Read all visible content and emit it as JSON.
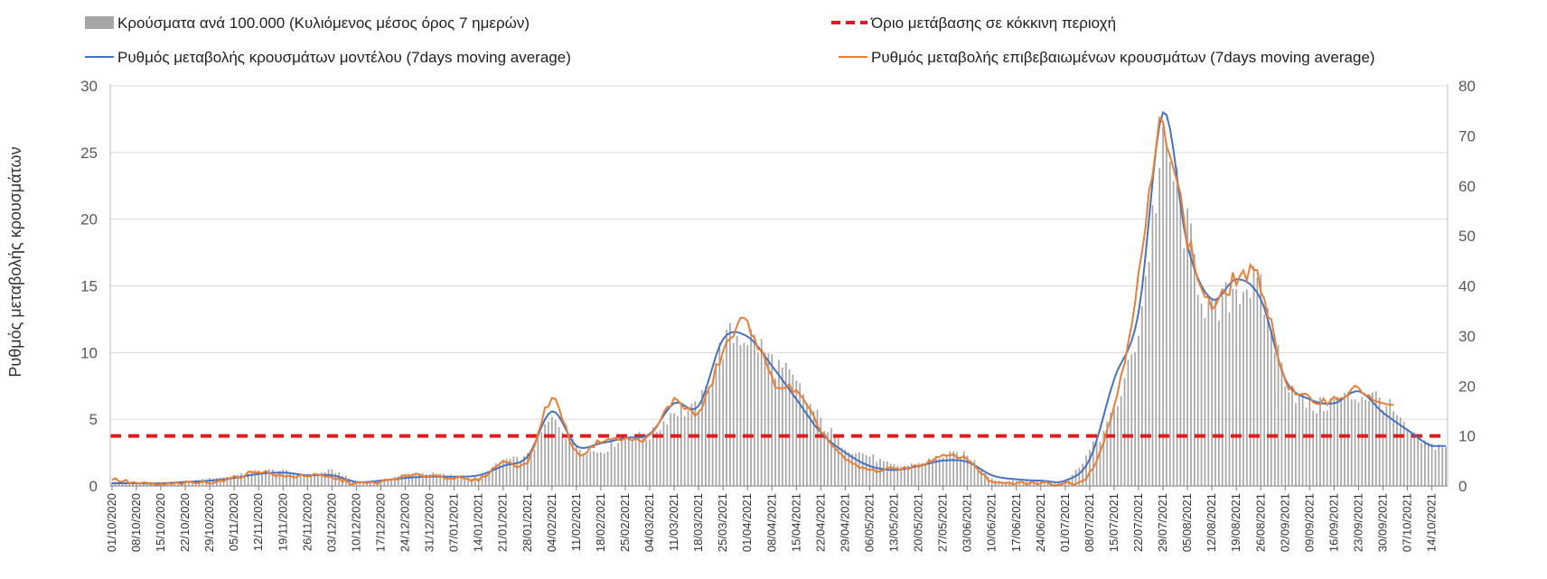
{
  "chart_data": {
    "type": "bar+line",
    "ylabel": "Ρυθμός μεταβολής κρουσμάτων",
    "ylim": [
      0,
      30
    ],
    "yticks": [
      0,
      5,
      10,
      15,
      20,
      25,
      30
    ],
    "y2lim": [
      0,
      80
    ],
    "y2ticks": [
      0,
      10,
      20,
      30,
      40,
      50,
      60,
      70,
      80
    ],
    "grid": "horizontal",
    "legend_position": "top",
    "legend": {
      "bars": "Κρούσματα ανά 100.000 (Κυλιόμενος μέσος όρος 7 ημερών)",
      "threshold": "Όριο μετάβασης σε κόκκινη περιοχή",
      "model": "Ρυθμός μεταβολής κρουσμάτων μοντέλου (7days moving average)",
      "confirmed": "Ρυθμός μεταβολής επιβεβαιωμένων κρουσμάτων (7days moving average)"
    },
    "colors": {
      "bars": "#a6a6a6",
      "threshold": "#e3191c",
      "model": "#4472c4",
      "confirmed": "#ed7d31",
      "grid": "#d9d9d9",
      "axis": "#bfbfbf"
    },
    "x_tick_labels": [
      "01/10/2020",
      "08/10/2020",
      "15/10/2020",
      "22/10/2020",
      "29/10/2020",
      "05/11/2020",
      "12/11/2020",
      "19/11/2020",
      "26/11/2020",
      "03/12/2020",
      "10/12/2020",
      "17/12/2020",
      "24/12/2020",
      "31/12/2020",
      "07/01/2021",
      "14/01/2021",
      "21/01/2021",
      "28/01/2021",
      "04/02/2021",
      "11/02/2021",
      "18/02/2021",
      "25/02/2021",
      "04/03/2021",
      "11/03/2021",
      "18/03/2021",
      "25/03/2021",
      "01/04/2021",
      "08/04/2021",
      "15/04/2021",
      "22/04/2021",
      "29/04/2021",
      "06/05/2021",
      "13/05/2021",
      "20/05/2021",
      "27/05/2021",
      "03/06/2021",
      "10/06/2021",
      "17/06/2021",
      "24/06/2021",
      "01/07/2021",
      "08/07/2021",
      "15/07/2021",
      "22/07/2021",
      "29/07/2021",
      "05/08/2021",
      "12/08/2021",
      "19/08/2021",
      "26/08/2021",
      "02/09/2021",
      "09/09/2021",
      "16/09/2021",
      "23/09/2021",
      "30/09/2021",
      "07/10/2021",
      "14/10/2021"
    ],
    "bar_series_weekly": {
      "name": "Κρούσματα ανά 100.000 (Κυλιόμενος μέσος όρος 7 ημερών)",
      "axis": "right",
      "values": [
        0.8,
        0.6,
        0.6,
        0.8,
        1.5,
        2.0,
        3.0,
        3.0,
        2.0,
        3.0,
        1.0,
        1.2,
        2.3,
        2.5,
        2.0,
        1.5,
        5.0,
        6.0,
        13.0,
        8.0,
        7.0,
        10.0,
        10.0,
        15.0,
        16.0,
        28.0,
        30.0,
        25.0,
        20.0,
        13.0,
        8.0,
        6.0,
        4.0,
        4.5,
        6.0,
        6.0,
        1.5,
        1.0,
        1.0,
        1.0,
        7.0,
        15.0,
        32.0,
        65.0,
        50.0,
        34.0,
        40.0,
        38.0,
        22.0,
        16.0,
        17.0,
        18.0,
        17.0,
        11.0,
        8.0
      ]
    },
    "model_series_weekly": {
      "name": "Ρυθμός μεταβολής κρουσμάτων μοντέλου (7days moving average)",
      "axis": "left",
      "values": [
        0.2,
        0.2,
        0.2,
        0.3,
        0.4,
        0.6,
        0.9,
        1.0,
        0.8,
        0.8,
        0.3,
        0.4,
        0.6,
        0.7,
        0.7,
        0.8,
        1.5,
        2.2,
        5.6,
        3.0,
        3.2,
        3.6,
        3.9,
        6.2,
        6.0,
        11.0,
        11.2,
        9.0,
        6.5,
        4.0,
        2.5,
        1.5,
        1.2,
        1.5,
        1.9,
        1.8,
        0.8,
        0.5,
        0.4,
        0.4,
        2.0,
        8.0,
        13.0,
        28.0,
        18.0,
        14.0,
        15.5,
        14.0,
        8.0,
        6.5,
        6.2,
        7.1,
        5.5,
        4.2,
        3.0
      ]
    },
    "confirmed_series_weekly": {
      "name": "Ρυθμός μεταβολής επιβεβαιωμένων κρουσμάτων (7days moving average)",
      "axis": "left",
      "values": [
        0.5,
        0.2,
        0.1,
        0.2,
        0.3,
        0.6,
        1.1,
        0.7,
        0.8,
        0.6,
        0.2,
        0.3,
        0.7,
        0.8,
        0.6,
        0.5,
        1.8,
        1.8,
        6.5,
        2.5,
        3.4,
        3.5,
        3.7,
        6.4,
        5.5,
        10.0,
        12.2,
        8.0,
        7.0,
        4.2,
        2.0,
        1.2,
        1.3,
        1.5,
        2.2,
        2.0,
        0.3,
        0.2,
        0.2,
        0.2,
        1.0,
        6.0,
        15.5,
        27.0,
        18.5,
        13.5,
        15.6,
        15.0,
        8.0,
        6.5,
        6.5,
        7.2,
        6.0
      ],
      "ends_at_index": 52.4
    },
    "threshold": {
      "name": "Όριο μετάβασης σε κόκκινη περιοχή",
      "axis": "right",
      "value": 10
    }
  }
}
